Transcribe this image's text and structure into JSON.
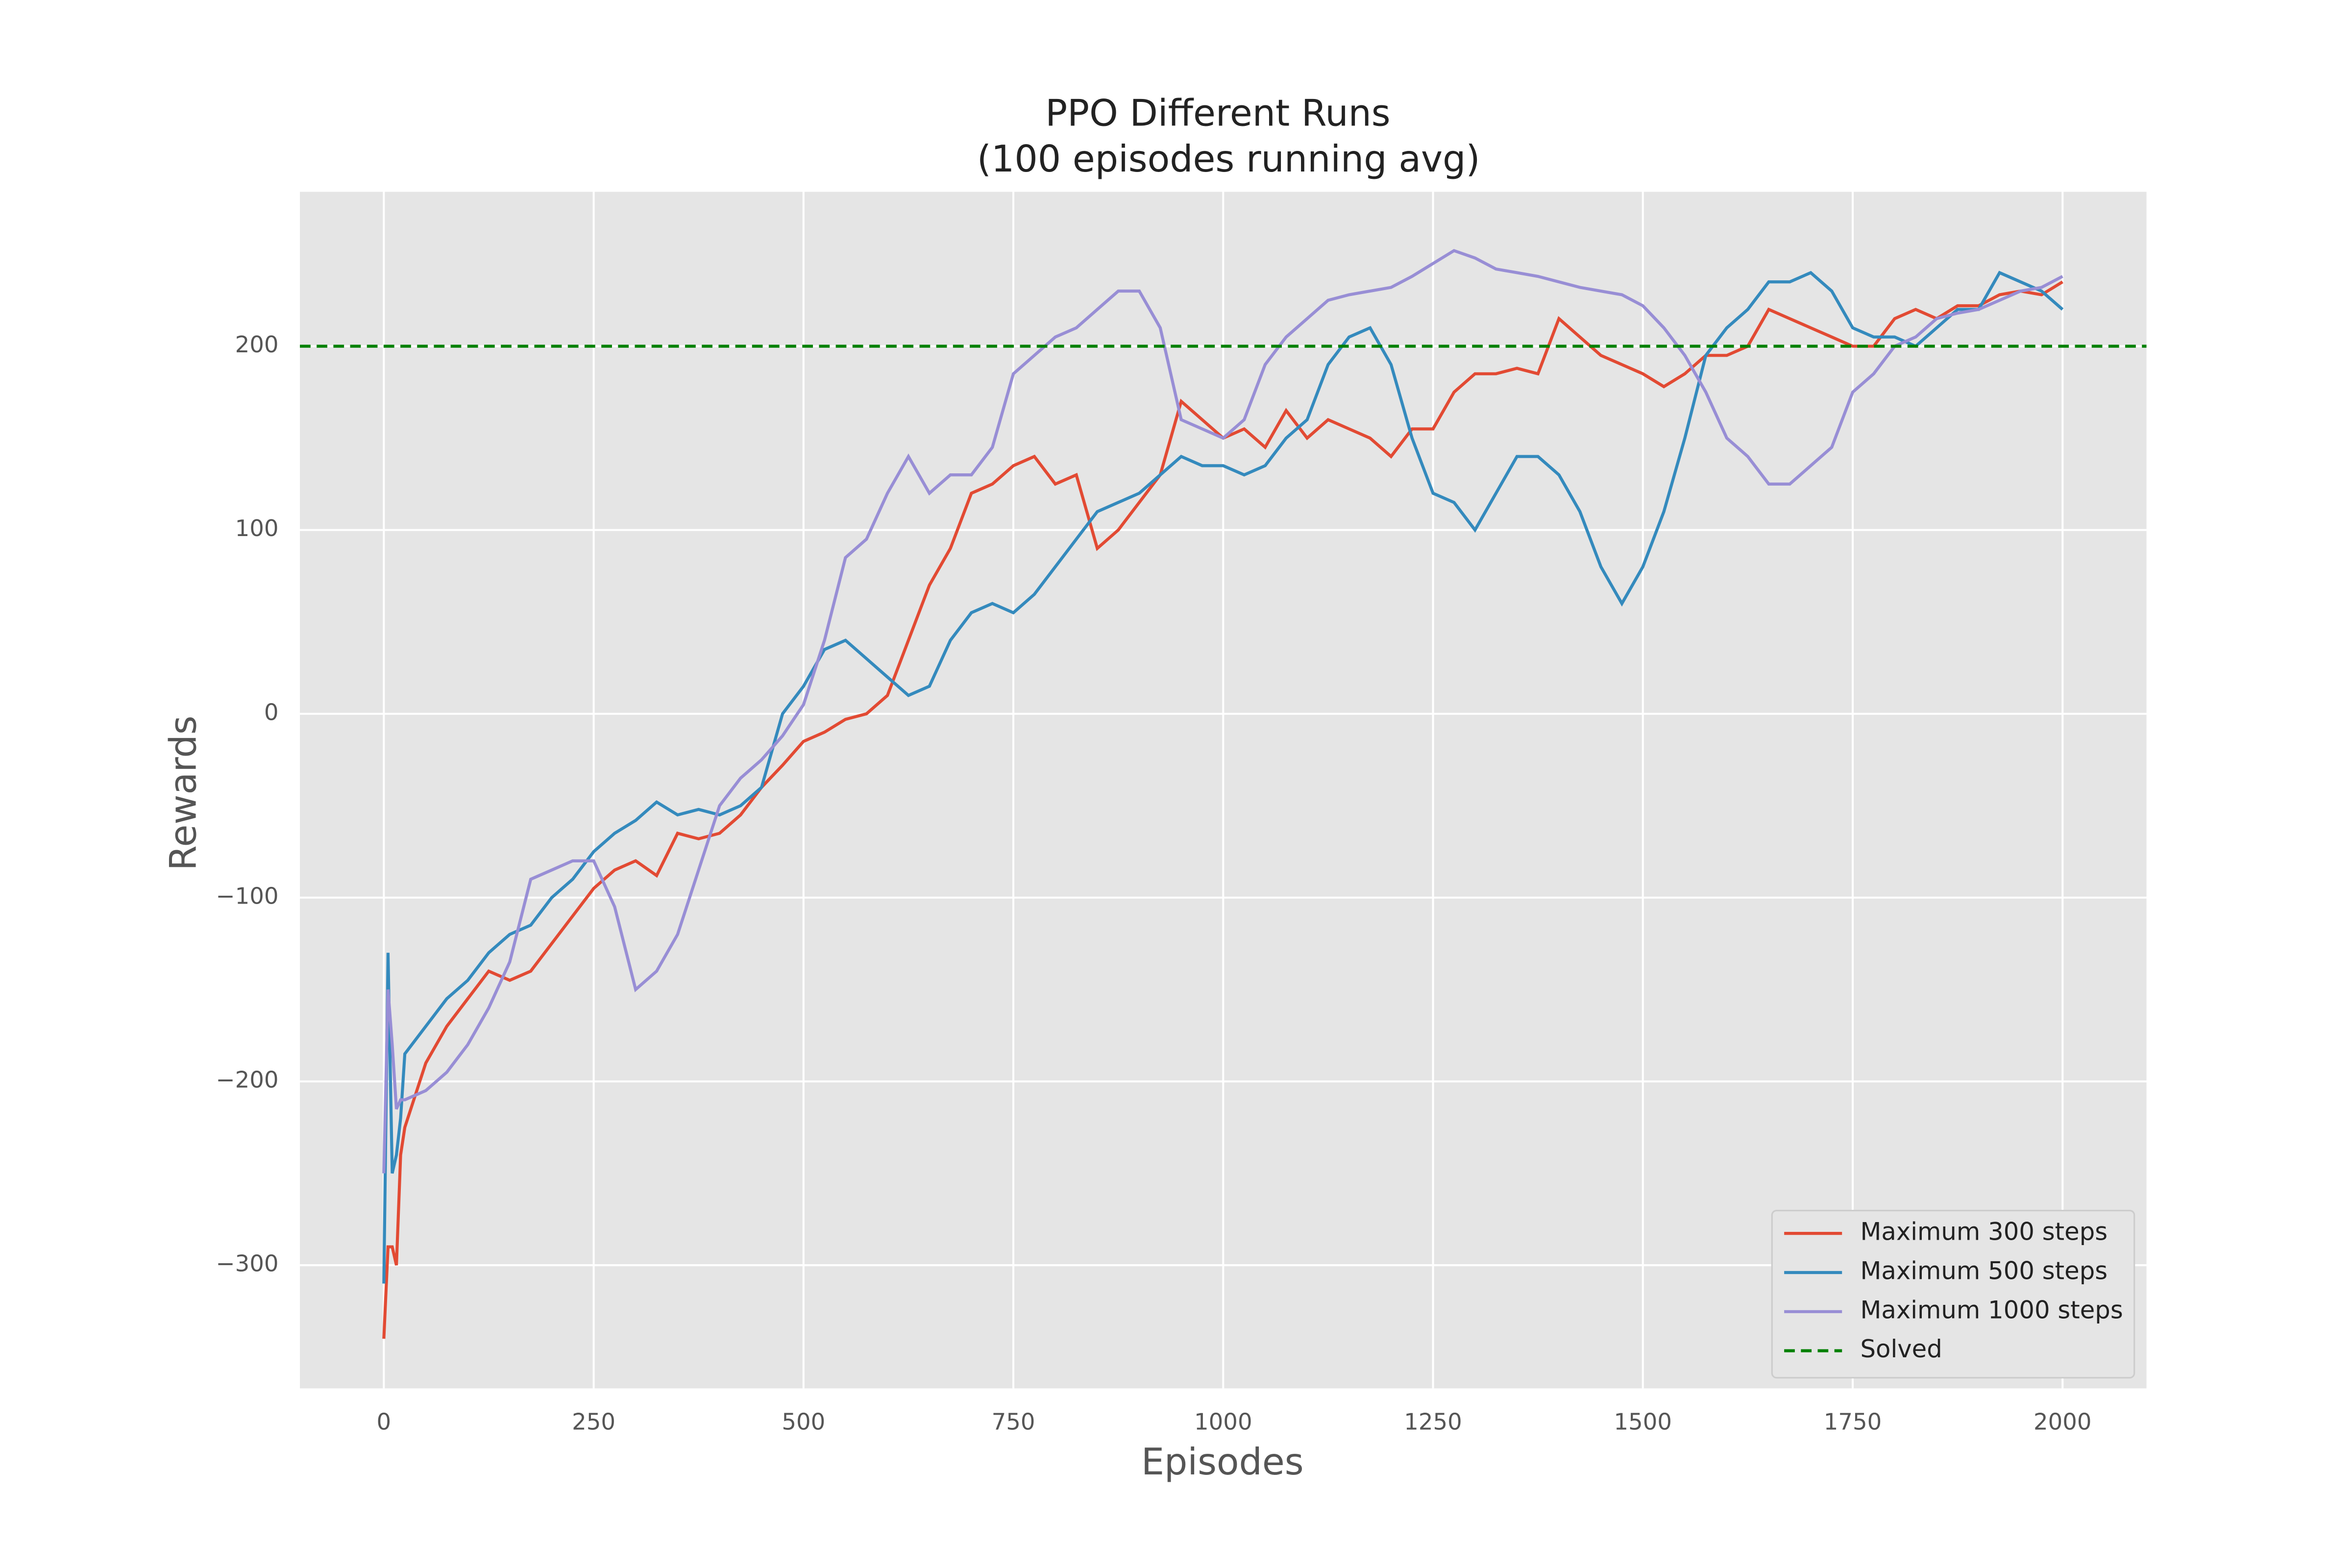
{
  "chart_data": {
    "type": "line",
    "title": "PPO Different Runs",
    "subtitle": "(100 episodes running avg)",
    "x_label": "Episodes",
    "y_label": "Rewards",
    "x": [
      0,
      5,
      10,
      15,
      20,
      25,
      50,
      75,
      100,
      125,
      150,
      175,
      200,
      225,
      250,
      275,
      300,
      325,
      350,
      375,
      400,
      425,
      450,
      475,
      500,
      525,
      550,
      575,
      600,
      625,
      650,
      675,
      700,
      725,
      750,
      775,
      800,
      825,
      850,
      875,
      900,
      925,
      950,
      975,
      1000,
      1025,
      1050,
      1075,
      1100,
      1125,
      1150,
      1175,
      1200,
      1225,
      1250,
      1275,
      1300,
      1325,
      1350,
      1375,
      1400,
      1425,
      1450,
      1475,
      1500,
      1525,
      1550,
      1575,
      1600,
      1625,
      1650,
      1675,
      1700,
      1725,
      1750,
      1775,
      1800,
      1825,
      1850,
      1875,
      1900,
      1925,
      1950,
      1975,
      2000
    ],
    "series": [
      {
        "name": "Maximum 300 steps",
        "color": "#E24A33",
        "values": [
          -340,
          -290,
          -290,
          -300,
          -240,
          -225,
          -190,
          -170,
          -155,
          -140,
          -145,
          -140,
          -125,
          -110,
          -95,
          -85,
          -80,
          -88,
          -65,
          -68,
          -65,
          -55,
          -40,
          -28,
          -15,
          -10,
          -3,
          0,
          10,
          40,
          70,
          90,
          120,
          125,
          135,
          140,
          125,
          130,
          90,
          100,
          115,
          130,
          170,
          160,
          150,
          155,
          145,
          165,
          150,
          160,
          155,
          150,
          140,
          155,
          155,
          175,
          185,
          185,
          188,
          185,
          215,
          205,
          195,
          190,
          185,
          178,
          185,
          195,
          195,
          200,
          220,
          215,
          210,
          205,
          200,
          200,
          215,
          220,
          215,
          222,
          222,
          228,
          230,
          228,
          235
        ]
      },
      {
        "name": "Maximum 500 steps",
        "color": "#348ABD",
        "values": [
          -310,
          -130,
          -250,
          -240,
          -220,
          -185,
          -170,
          -155,
          -145,
          -130,
          -120,
          -115,
          -100,
          -90,
          -75,
          -65,
          -58,
          -48,
          -55,
          -52,
          -55,
          -50,
          -40,
          0,
          15,
          35,
          40,
          30,
          20,
          10,
          15,
          40,
          55,
          60,
          55,
          65,
          80,
          95,
          110,
          115,
          120,
          130,
          140,
          135,
          135,
          130,
          135,
          150,
          160,
          190,
          205,
          210,
          190,
          150,
          120,
          115,
          100,
          120,
          140,
          140,
          130,
          110,
          80,
          60,
          80,
          110,
          150,
          195,
          210,
          220,
          235,
          235,
          240,
          230,
          210,
          205,
          205,
          200,
          210,
          220,
          220,
          240,
          235,
          230,
          220
        ]
      },
      {
        "name": "Maximum 1000 steps",
        "color": "#988ED5",
        "values": [
          -250,
          -150,
          -180,
          -215,
          -210,
          -210,
          -205,
          -195,
          -180,
          -160,
          -135,
          -90,
          -85,
          -80,
          -80,
          -105,
          -150,
          -140,
          -120,
          -85,
          -50,
          -35,
          -25,
          -12,
          5,
          40,
          85,
          95,
          120,
          140,
          120,
          130,
          130,
          145,
          185,
          195,
          205,
          210,
          220,
          230,
          230,
          210,
          160,
          155,
          150,
          160,
          190,
          205,
          215,
          225,
          228,
          230,
          232,
          238,
          245,
          252,
          248,
          242,
          240,
          238,
          235,
          232,
          230,
          228,
          222,
          210,
          195,
          175,
          150,
          140,
          125,
          125,
          135,
          145,
          175,
          185,
          200,
          205,
          215,
          218,
          220,
          225,
          230,
          232,
          238
        ]
      }
    ],
    "hlines": [
      {
        "name": "Solved",
        "value": 200,
        "color": "green",
        "style": "dashed"
      }
    ],
    "xlim": [
      -100,
      2100
    ],
    "ylim": [
      -367,
      284
    ],
    "xticks": [
      0,
      250,
      500,
      750,
      1000,
      1250,
      1500,
      1750,
      2000
    ],
    "yticks": [
      {
        "value": -300,
        "label": "−300"
      },
      {
        "value": -200,
        "label": "−200"
      },
      {
        "value": -100,
        "label": "−100"
      },
      0,
      100,
      200
    ],
    "grid": true,
    "legend": "lower right"
  }
}
